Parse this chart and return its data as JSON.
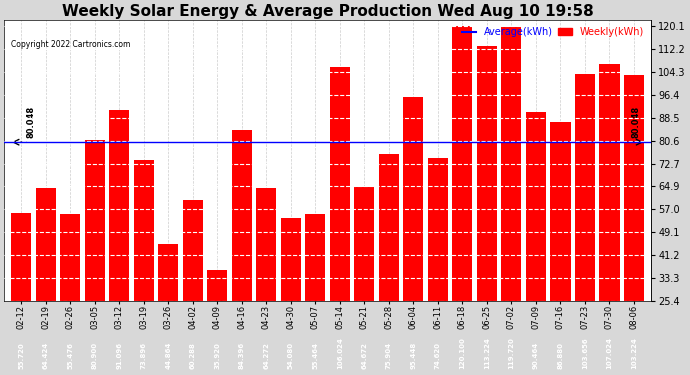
{
  "title": "Weekly Solar Energy & Average Production Wed Aug 10 19:58",
  "copyright": "Copyright 2022 Cartronics.com",
  "categories": [
    "02-12",
    "02-19",
    "02-26",
    "03-05",
    "03-12",
    "03-19",
    "03-26",
    "04-02",
    "04-09",
    "04-16",
    "04-23",
    "04-30",
    "05-07",
    "05-14",
    "05-21",
    "05-28",
    "06-04",
    "06-11",
    "06-18",
    "06-25",
    "07-02",
    "07-09",
    "07-16",
    "07-23",
    "07-30",
    "08-06"
  ],
  "values": [
    55.72,
    64.424,
    55.476,
    80.9,
    91.096,
    73.896,
    44.864,
    60.288,
    35.92,
    84.396,
    64.272,
    54.08,
    55.464,
    106.024,
    64.672,
    75.904,
    95.448,
    74.62,
    120.1,
    113.224,
    119.72,
    90.464,
    86.88,
    103.656,
    107.024,
    103.224
  ],
  "bar_labels": [
    "55.720",
    "64.424",
    "55.476",
    "80.900",
    "91.096",
    "73.896",
    "44.864",
    "60.288",
    "35.920",
    "84.396",
    "64.272",
    "54.080",
    "55.464",
    "106.024",
    "64.672",
    "75.904",
    "95.448",
    "74.620",
    "120.100",
    "113.224",
    "119.720",
    "90.464",
    "86.880",
    "103.656",
    "107.024",
    "103.224"
  ],
  "average": 80.048,
  "bar_color": "#ff0000",
  "avg_line_color": "#0000ff",
  "title_fontsize": 11,
  "ylabel_right_values": [
    120.1,
    112.2,
    104.3,
    96.4,
    88.5,
    80.6,
    72.7,
    64.9,
    57.0,
    49.1,
    41.2,
    33.3,
    25.4
  ],
  "ylim_min": 25.4,
  "ylim_max": 122.0,
  "background_color": "#d8d8d8",
  "plot_bg_color": "#ffffff",
  "avg_label": "Average(kWh)",
  "weekly_label": "Weekly(kWh)"
}
